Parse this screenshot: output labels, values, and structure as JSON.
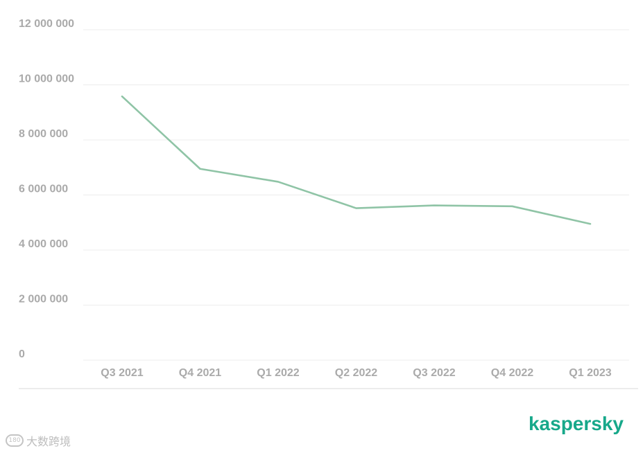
{
  "chart_data": {
    "type": "line",
    "categories": [
      "Q3 2021",
      "Q4 2021",
      "Q1 2022",
      "Q2 2022",
      "Q3 2022",
      "Q4 2022",
      "Q1 2023"
    ],
    "series": [
      {
        "values": [
          9580000,
          6950000,
          6480000,
          5520000,
          5620000,
          5590000,
          4950000
        ]
      }
    ],
    "yticks": [
      0,
      2000000,
      4000000,
      6000000,
      8000000,
      10000000,
      12000000
    ],
    "ytick_labels": [
      "0",
      "2 000 000",
      "4 000 000",
      "6 000 000",
      "8 000 000",
      "10 000 000",
      "12 000 000"
    ],
    "ylim": [
      0,
      12000000
    ],
    "grid": true,
    "line_color": "#8fc4a6"
  },
  "brand": {
    "logo_text": "kaspersky",
    "color": "#17a88a"
  },
  "watermark": {
    "icon_text": "180",
    "text": "大数跨境"
  }
}
